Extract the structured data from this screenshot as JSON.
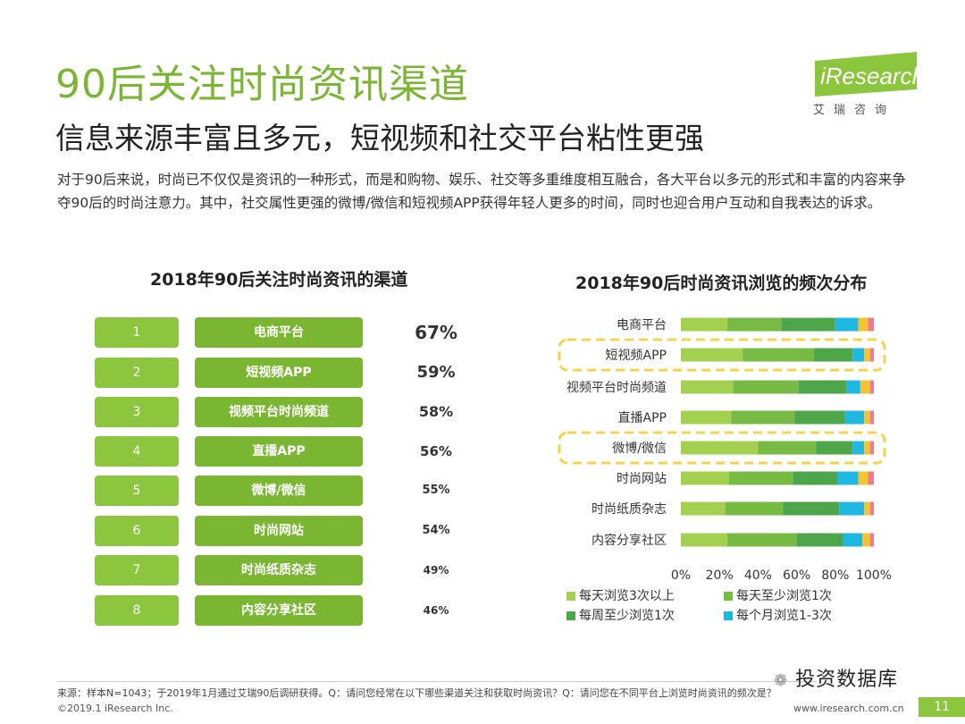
{
  "header": {
    "title": "90后关注时尚资讯渠道",
    "subtitle": "信息来源丰富且多元，短视频和社交平台粘性更强",
    "intro": "对于90后来说，时尚已不仅仅是资讯的一种形式，而是和购物、娱乐、社交等多重维度相互融合，各大平台以多元的形式和丰富的内容来争夺90后的时尚注意力。其中，社交属性更强的微博/微信和短视频APP获得年轻人更多的时间，同时也迎合用户互动和自我表达的诉求。"
  },
  "brand": {
    "logo_text": "iResearch",
    "logo_tagline": "艾瑞咨询",
    "accent": "#7ab632"
  },
  "chart_data": [
    {
      "type": "table",
      "title": "2018年90后关注时尚资讯的渠道",
      "rows": [
        {
          "rank": "1",
          "channel": "电商平台",
          "value": "67%"
        },
        {
          "rank": "2",
          "channel": "短视频APP",
          "value": "59%"
        },
        {
          "rank": "3",
          "channel": "视频平台时尚频道",
          "value": "58%"
        },
        {
          "rank": "4",
          "channel": "直播APP",
          "value": "56%"
        },
        {
          "rank": "5",
          "channel": "微博/微信",
          "value": "55%"
        },
        {
          "rank": "6",
          "channel": "时尚网站",
          "value": "54%"
        },
        {
          "rank": "7",
          "channel": "时尚纸质杂志",
          "value": "49%"
        },
        {
          "rank": "8",
          "channel": "内容分享社区",
          "value": "46%"
        }
      ]
    },
    {
      "type": "bar",
      "orientation": "horizontal",
      "stacked": true,
      "title": "2018年90后时尚资讯浏览的频次分布",
      "categories": [
        "电商平台",
        "短视频APP",
        "视频平台时尚频道",
        "直播APP",
        "微博/微信",
        "时尚网站",
        "时尚纸质杂志",
        "内容分享社区"
      ],
      "highlighted": [
        "短视频APP",
        "微博/微信"
      ],
      "series": [
        {
          "name": "每天浏览3次以上",
          "color": "#a3d04e",
          "values": [
            24,
            32,
            27,
            26,
            40,
            25,
            23,
            24
          ]
        },
        {
          "name": "每天至少浏览1次",
          "color": "#77bb44",
          "values": [
            28,
            37,
            34,
            33,
            30,
            33,
            30,
            36
          ]
        },
        {
          "name": "每周至少浏览1次",
          "color": "#4ea64a",
          "values": [
            28,
            20,
            25,
            26,
            19,
            23,
            29,
            24
          ]
        },
        {
          "name": "每个月浏览1-3次",
          "color": "#1fb8e3",
          "values": [
            12,
            6,
            7,
            10,
            6,
            11,
            13,
            10
          ]
        },
        {
          "color": "#f4c430",
          "values": [
            5,
            3,
            5,
            3,
            3,
            5,
            3,
            4
          ]
        },
        {
          "color": "#ef7c8e",
          "values": [
            3,
            2,
            2,
            2,
            2,
            3,
            2,
            2
          ]
        }
      ],
      "x_ticks": [
        "0%",
        "20%",
        "40%",
        "60%",
        "80%",
        "100%"
      ],
      "xlim": [
        0,
        100
      ]
    }
  ],
  "footer": {
    "source": "来源：样本N=1043；于2019年1月通过艾瑞90后调研获得。Q：请问您经常在以下哪些渠道关注和获取时尚资讯？Q：请问您在不同平台上浏览时尚资讯的频次是？",
    "copyright": "©2019.1 iResearch Inc.",
    "site": "www.iresearch.com.cn",
    "watermark": "投资数据库",
    "page": "11"
  }
}
